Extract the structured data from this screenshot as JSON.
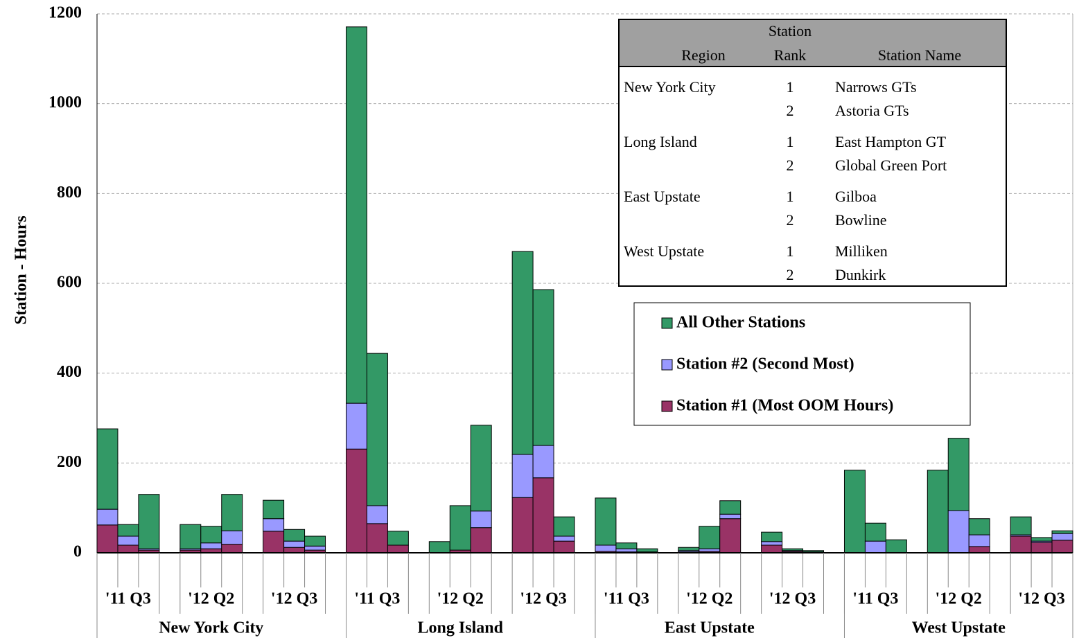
{
  "chart_data": {
    "type": "stacked_bar",
    "y_label": "Station - Hours",
    "ylim": [
      0,
      1200
    ],
    "yticks": [
      0,
      200,
      400,
      600,
      800,
      1000,
      1200
    ],
    "grid": true,
    "categories": [
      null,
      null,
      null,
      null,
      null,
      null,
      null,
      null,
      null,
      null,
      null,
      null,
      null,
      null,
      null,
      null,
      null,
      null,
      null,
      null,
      null,
      null,
      null,
      null,
      null,
      null,
      null,
      null,
      null,
      null,
      null,
      null,
      null,
      null,
      null,
      null
    ],
    "groups": [
      {
        "name": "New York City",
        "subgroups": [
          "'11 Q3",
          "'12 Q2",
          "'12 Q3"
        ]
      },
      {
        "name": "Long Island",
        "subgroups": [
          "'11 Q3",
          "'12 Q2",
          "'12 Q3"
        ]
      },
      {
        "name": "East Upstate",
        "subgroups": [
          "'11 Q3",
          "'12 Q2",
          "'12 Q3"
        ]
      },
      {
        "name": "West Upstate",
        "subgroups": [
          "'11 Q3",
          "'12 Q2",
          "'12 Q3"
        ]
      }
    ],
    "series": [
      {
        "name": "Station #1 (Most OOM Hours)",
        "color": "#993366",
        "values": [
          62,
          17,
          6,
          6,
          9,
          19,
          48,
          12,
          6,
          231,
          65,
          17,
          0,
          6,
          56,
          123,
          167,
          26,
          3,
          2,
          0,
          2,
          3,
          76,
          17,
          3,
          2,
          0,
          0,
          0,
          0,
          0,
          14,
          37,
          23,
          28
        ]
      },
      {
        "name": "Station #2 (Second Most)",
        "color": "#9999ff",
        "values": [
          35,
          20,
          3,
          3,
          13,
          30,
          28,
          14,
          9,
          102,
          40,
          0,
          0,
          0,
          37,
          96,
          72,
          11,
          14,
          7,
          2,
          3,
          6,
          10,
          8,
          2,
          0,
          0,
          26,
          0,
          0,
          94,
          26,
          3,
          3,
          15
        ]
      },
      {
        "name": "All Other Stations",
        "color": "#339966",
        "values": [
          179,
          26,
          121,
          54,
          37,
          81,
          41,
          26,
          22,
          838,
          339,
          31,
          25,
          99,
          191,
          452,
          347,
          43,
          105,
          13,
          7,
          7,
          50,
          30,
          21,
          4,
          3,
          184,
          40,
          29,
          184,
          161,
          36,
          40,
          8,
          6
        ]
      }
    ],
    "table": {
      "header": {
        "region": "Region",
        "rank": [
          "Station",
          "Rank"
        ],
        "name": "Station Name"
      },
      "rows": [
        [
          "New York City",
          1,
          "Narrows GTs"
        ],
        [
          null,
          2,
          "Astoria GTs"
        ],
        [
          "Long Island",
          1,
          "East Hampton GT"
        ],
        [
          null,
          2,
          "Global Green Port"
        ],
        [
          "East Upstate",
          1,
          "Gilboa"
        ],
        [
          null,
          2,
          "Bowline"
        ],
        [
          "West Upstate",
          1,
          "Milliken"
        ],
        [
          null,
          2,
          "Dunkirk"
        ]
      ]
    }
  }
}
